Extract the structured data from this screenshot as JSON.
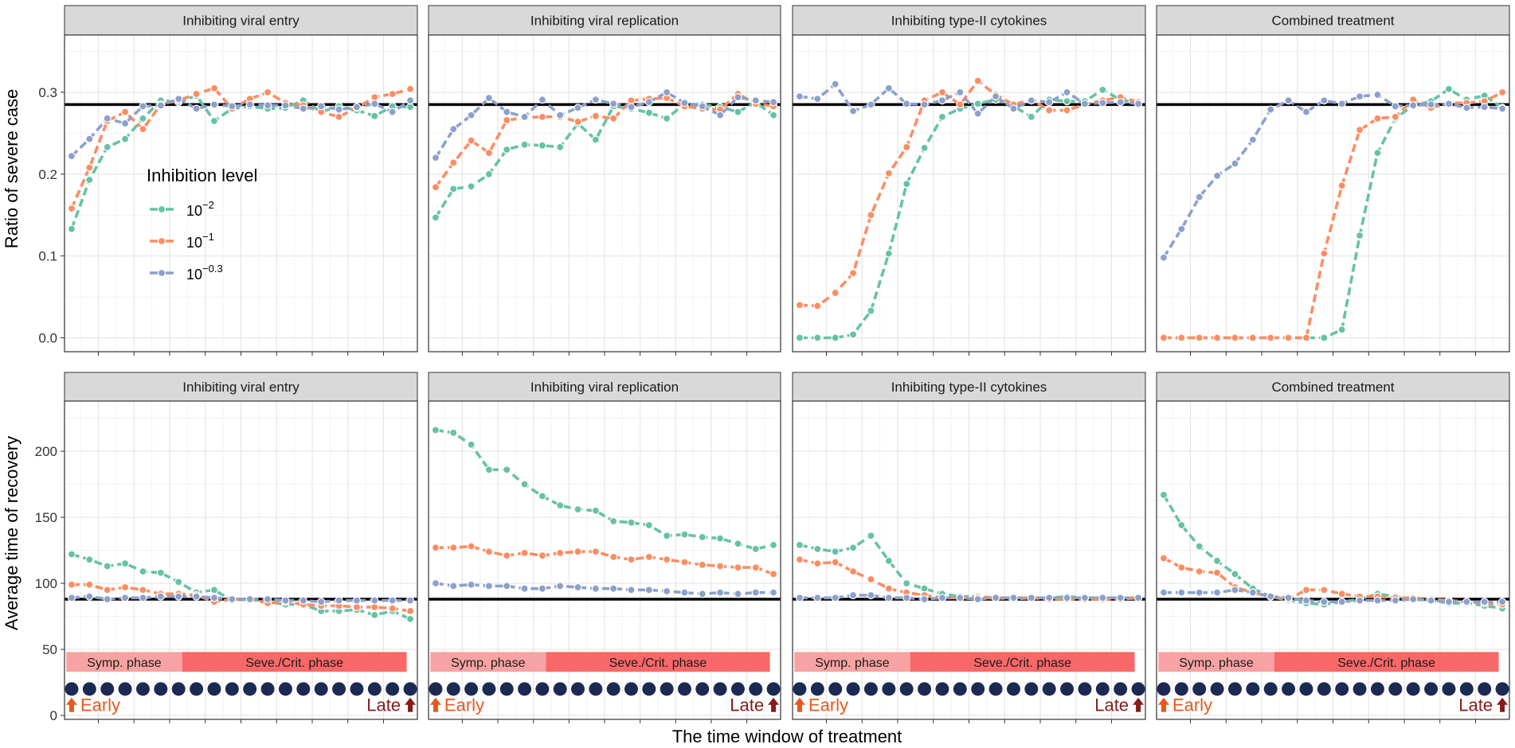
{
  "figure": {
    "xlabel": "The time window of treatment",
    "row_ylabels": [
      "Ratio of severe case",
      "Average time of recovery"
    ]
  },
  "legend": {
    "title": "Inhibition level",
    "items": [
      {
        "base": "10",
        "exp": "−2",
        "color": "#66c2a5"
      },
      {
        "base": "10",
        "exp": "−1",
        "color": "#fc8d62"
      },
      {
        "base": "10",
        "exp": "−0.3",
        "color": "#8da0cb"
      }
    ]
  },
  "annotations": {
    "symp_phase": "Symp. phase",
    "severe_phase": "Seve./Crit. phase",
    "early": "Early",
    "late": "Late",
    "symp_color": "#f8a3a3",
    "severe_color": "#f86868",
    "dot_color": "#1b2a52",
    "early_color": "#e8581c",
    "late_color": "#8b1a1a"
  },
  "chart_data": [
    {
      "type": "line",
      "panel": "severe-entry",
      "title": "Inhibiting viral entry",
      "ylabel": "Ratio of severe case",
      "ylim": [
        -0.017,
        0.37
      ],
      "yticks": [
        0.0,
        0.1,
        0.2,
        0.3
      ],
      "reference_line": 0.285,
      "x": [
        1,
        2,
        3,
        4,
        5,
        6,
        7,
        8,
        9,
        10,
        11,
        12,
        13,
        14,
        15,
        16,
        17,
        18,
        19,
        20
      ],
      "series": [
        {
          "name": "10^-2",
          "values": [
            0.133,
            0.193,
            0.233,
            0.243,
            0.268,
            0.29,
            0.288,
            0.296,
            0.265,
            0.28,
            0.283,
            0.28,
            0.281,
            0.29,
            0.276,
            0.283,
            0.278,
            0.271,
            0.283,
            0.282
          ]
        },
        {
          "name": "10^-1",
          "values": [
            0.158,
            0.208,
            0.265,
            0.276,
            0.255,
            0.285,
            0.29,
            0.298,
            0.305,
            0.28,
            0.292,
            0.3,
            0.287,
            0.284,
            0.276,
            0.27,
            0.281,
            0.294,
            0.298,
            0.304
          ]
        },
        {
          "name": "10^-0.3",
          "values": [
            0.222,
            0.243,
            0.268,
            0.262,
            0.283,
            0.284,
            0.292,
            0.28,
            0.285,
            0.283,
            0.285,
            0.284,
            0.284,
            0.28,
            0.283,
            0.279,
            0.282,
            0.286,
            0.276,
            0.29
          ]
        }
      ]
    },
    {
      "type": "line",
      "panel": "severe-replication",
      "title": "Inhibiting viral replication",
      "ylabel": "Ratio of severe case",
      "ylim": [
        -0.017,
        0.37
      ],
      "yticks": [
        0.0,
        0.1,
        0.2,
        0.3
      ],
      "reference_line": 0.285,
      "x": [
        1,
        2,
        3,
        4,
        5,
        6,
        7,
        8,
        9,
        10,
        11,
        12,
        13,
        14,
        15,
        16,
        17,
        18,
        19,
        20
      ],
      "series": [
        {
          "name": "10^-2",
          "values": [
            0.147,
            0.182,
            0.185,
            0.2,
            0.23,
            0.236,
            0.235,
            0.233,
            0.262,
            0.242,
            0.283,
            0.28,
            0.275,
            0.268,
            0.286,
            0.285,
            0.282,
            0.276,
            0.288,
            0.272
          ]
        },
        {
          "name": "10^-1",
          "values": [
            0.184,
            0.214,
            0.241,
            0.226,
            0.266,
            0.269,
            0.27,
            0.27,
            0.264,
            0.271,
            0.268,
            0.29,
            0.292,
            0.293,
            0.283,
            0.28,
            0.279,
            0.298,
            0.286,
            0.283
          ]
        },
        {
          "name": "10^-0.3",
          "values": [
            0.22,
            0.255,
            0.272,
            0.293,
            0.276,
            0.27,
            0.291,
            0.272,
            0.281,
            0.291,
            0.286,
            0.282,
            0.288,
            0.3,
            0.287,
            0.283,
            0.272,
            0.294,
            0.29,
            0.288
          ]
        }
      ]
    },
    {
      "type": "line",
      "panel": "severe-cytokines",
      "title": "Inhibiting type-II cytokines",
      "ylabel": "Ratio of severe case",
      "ylim": [
        -0.017,
        0.37
      ],
      "yticks": [
        0.0,
        0.1,
        0.2,
        0.3
      ],
      "reference_line": 0.285,
      "x": [
        1,
        2,
        3,
        4,
        5,
        6,
        7,
        8,
        9,
        10,
        11,
        12,
        13,
        14,
        15,
        16,
        17,
        18,
        19,
        20
      ],
      "series": [
        {
          "name": "10^-2",
          "values": [
            0.0,
            0.0,
            0.0,
            0.004,
            0.033,
            0.103,
            0.188,
            0.232,
            0.27,
            0.28,
            0.286,
            0.291,
            0.283,
            0.27,
            0.291,
            0.289,
            0.289,
            0.303,
            0.291,
            0.287
          ]
        },
        {
          "name": "10^-1",
          "values": [
            0.04,
            0.039,
            0.055,
            0.079,
            0.15,
            0.201,
            0.233,
            0.29,
            0.3,
            0.285,
            0.314,
            0.297,
            0.285,
            0.291,
            0.278,
            0.278,
            0.285,
            0.29,
            0.294,
            0.288
          ]
        },
        {
          "name": "10^-0.3",
          "values": [
            0.295,
            0.292,
            0.31,
            0.277,
            0.285,
            0.305,
            0.286,
            0.285,
            0.29,
            0.3,
            0.274,
            0.295,
            0.28,
            0.29,
            0.288,
            0.3,
            0.286,
            0.287,
            0.288,
            0.286
          ]
        }
      ]
    },
    {
      "type": "line",
      "panel": "severe-combined",
      "title": "Combined treatment",
      "ylabel": "Ratio of severe case",
      "ylim": [
        -0.017,
        0.37
      ],
      "yticks": [
        0.0,
        0.1,
        0.2,
        0.3
      ],
      "reference_line": 0.285,
      "x": [
        1,
        2,
        3,
        4,
        5,
        6,
        7,
        8,
        9,
        10,
        11,
        12,
        13,
        14,
        15,
        16,
        17,
        18,
        19,
        20
      ],
      "series": [
        {
          "name": "10^-2",
          "values": [
            0.0,
            0.0,
            0.0,
            0.0,
            0.0,
            0.0,
            0.0,
            0.0,
            0.0,
            0.0,
            0.01,
            0.125,
            0.226,
            0.268,
            0.284,
            0.289,
            0.304,
            0.291,
            0.296,
            0.281
          ]
        },
        {
          "name": "10^-1",
          "values": [
            0.0,
            0.0,
            0.0,
            0.0,
            0.0,
            0.0,
            0.0,
            0.0,
            0.0,
            0.103,
            0.186,
            0.254,
            0.268,
            0.27,
            0.291,
            0.281,
            0.287,
            0.287,
            0.289,
            0.3
          ]
        },
        {
          "name": "10^-0.3",
          "values": [
            0.098,
            0.133,
            0.172,
            0.198,
            0.213,
            0.242,
            0.279,
            0.29,
            0.276,
            0.29,
            0.286,
            0.295,
            0.297,
            0.283,
            0.284,
            0.285,
            0.286,
            0.281,
            0.282,
            0.28
          ]
        }
      ]
    },
    {
      "type": "line",
      "panel": "recovery-entry",
      "title": "Inhibiting viral entry",
      "ylabel": "Average time of recovery",
      "ylim": [
        -3,
        238
      ],
      "yticks": [
        0,
        50,
        100,
        150,
        200
      ],
      "reference_line": 88,
      "x": [
        1,
        2,
        3,
        4,
        5,
        6,
        7,
        8,
        9,
        10,
        11,
        12,
        13,
        14,
        15,
        16,
        17,
        18,
        19,
        20
      ],
      "series": [
        {
          "name": "10^-2",
          "values": [
            122,
            118,
            113,
            115,
            109,
            108,
            101,
            93,
            95,
            87,
            88,
            86,
            84,
            84,
            79,
            79,
            80,
            76,
            79,
            73
          ]
        },
        {
          "name": "10^-1",
          "values": [
            99,
            99,
            95,
            97,
            95,
            92,
            92,
            91,
            86,
            88,
            88,
            85,
            86,
            84,
            83,
            83,
            82,
            82,
            81,
            79
          ]
        },
        {
          "name": "10^-0.3",
          "values": [
            89,
            90,
            88,
            89,
            89,
            90,
            90,
            90,
            89,
            88,
            88,
            88,
            87,
            87,
            86,
            87,
            87,
            87,
            87,
            87
          ]
        }
      ]
    },
    {
      "type": "line",
      "panel": "recovery-replication",
      "title": "Inhibiting viral replication",
      "ylabel": "Average time of recovery",
      "ylim": [
        -3,
        238
      ],
      "yticks": [
        0,
        50,
        100,
        150,
        200
      ],
      "reference_line": 88,
      "x": [
        1,
        2,
        3,
        4,
        5,
        6,
        7,
        8,
        9,
        10,
        11,
        12,
        13,
        14,
        15,
        16,
        17,
        18,
        19,
        20
      ],
      "series": [
        {
          "name": "10^-2",
          "values": [
            216,
            214,
            205,
            186,
            186,
            175,
            166,
            159,
            156,
            155,
            147,
            146,
            144,
            136,
            137,
            135,
            134,
            130,
            126,
            129
          ]
        },
        {
          "name": "10^-1",
          "values": [
            127,
            127,
            128,
            124,
            121,
            123,
            121,
            123,
            124,
            124,
            120,
            118,
            120,
            118,
            116,
            114,
            113,
            112,
            112,
            107
          ]
        },
        {
          "name": "10^-0.3",
          "values": [
            100,
            98,
            99,
            98,
            98,
            96,
            96,
            98,
            97,
            96,
            96,
            95,
            95,
            94,
            93,
            92,
            93,
            92,
            93,
            93
          ]
        }
      ]
    },
    {
      "type": "line",
      "panel": "recovery-cytokines",
      "title": "Inhibiting type-II cytokines",
      "ylabel": "Average time of recovery",
      "ylim": [
        -3,
        238
      ],
      "yticks": [
        0,
        50,
        100,
        150,
        200
      ],
      "reference_line": 88,
      "x": [
        1,
        2,
        3,
        4,
        5,
        6,
        7,
        8,
        9,
        10,
        11,
        12,
        13,
        14,
        15,
        16,
        17,
        18,
        19,
        20
      ],
      "series": [
        {
          "name": "10^-2",
          "values": [
            129,
            126,
            124,
            127,
            136,
            117,
            100,
            96,
            92,
            90,
            90,
            89,
            88,
            89,
            89,
            90,
            89,
            89,
            89,
            89
          ]
        },
        {
          "name": "10^-1",
          "values": [
            118,
            115,
            116,
            109,
            103,
            96,
            93,
            91,
            89,
            89,
            89,
            89,
            89,
            89,
            88,
            88,
            88,
            88,
            88,
            89
          ]
        },
        {
          "name": "10^-0.3",
          "values": [
            89,
            89,
            89,
            91,
            91,
            89,
            89,
            88,
            89,
            89,
            88,
            89,
            89,
            89,
            89,
            89,
            89,
            89,
            89,
            89
          ]
        }
      ]
    },
    {
      "type": "line",
      "panel": "recovery-combined",
      "title": "Combined treatment",
      "ylabel": "Average time of recovery",
      "ylim": [
        -3,
        238
      ],
      "yticks": [
        0,
        50,
        100,
        150,
        200
      ],
      "reference_line": 88,
      "x": [
        1,
        2,
        3,
        4,
        5,
        6,
        7,
        8,
        9,
        10,
        11,
        12,
        13,
        14,
        15,
        16,
        17,
        18,
        19,
        20
      ],
      "series": [
        {
          "name": "10^-2",
          "values": [
            167,
            144,
            128,
            117,
            107,
            96,
            90,
            87,
            85,
            84,
            86,
            88,
            92,
            90,
            88,
            87,
            85,
            85,
            83,
            81
          ]
        },
        {
          "name": "10^-1",
          "values": [
            119,
            112,
            109,
            108,
            97,
            93,
            90,
            88,
            95,
            95,
            92,
            90,
            90,
            89,
            89,
            88,
            87,
            86,
            85,
            84
          ]
        },
        {
          "name": "10^-0.3",
          "values": [
            93,
            93,
            93,
            93,
            95,
            93,
            90,
            89,
            87,
            86,
            86,
            87,
            87,
            87,
            88,
            87,
            86,
            86,
            86,
            86
          ]
        }
      ]
    }
  ]
}
